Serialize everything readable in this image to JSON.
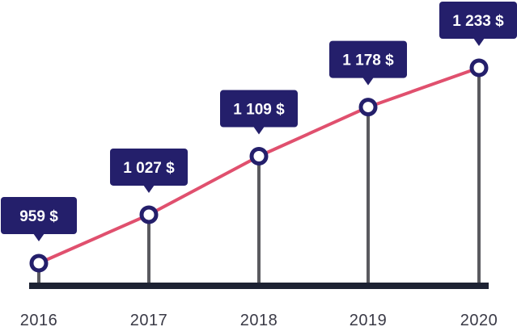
{
  "chart_data": {
    "type": "line",
    "title": "",
    "xlabel": "",
    "ylabel": "",
    "categories": [
      "2016",
      "2017",
      "2018",
      "2019",
      "2020"
    ],
    "values": [
      959,
      1027,
      1109,
      1178,
      1233
    ],
    "data_labels": [
      "959 $",
      "1 027 $",
      "1 109 $",
      "1 178 $",
      "1 233 $"
    ],
    "ylim": [
      900,
      1250
    ],
    "grid": false,
    "legend": "none",
    "colors": {
      "line": "#e0506e",
      "marker_fill": "#ffffff",
      "marker_stroke": "#241f6b",
      "callout": "#241f6b",
      "stem": "#5a5a5f",
      "baseline": "#1d2233",
      "axis_text": "#3a3a46"
    }
  }
}
